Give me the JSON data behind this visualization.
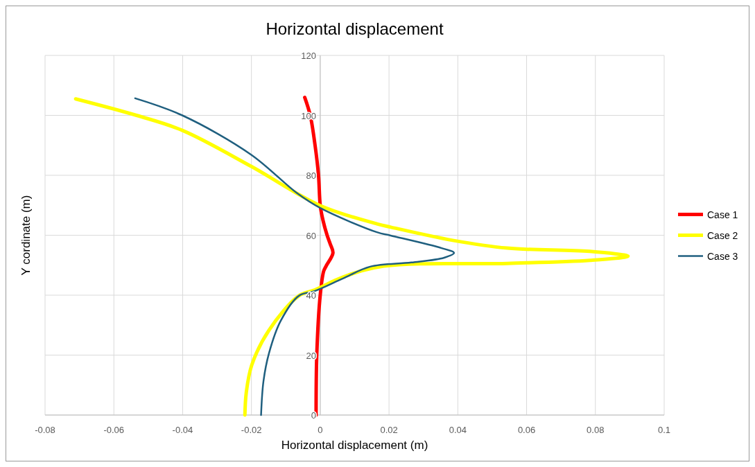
{
  "chart_data": {
    "type": "line",
    "title": "Horizontal displacement",
    "xlabel": "Horizontal displacement (m)",
    "ylabel": "Y cordinate (m)",
    "xlim": [
      -0.08,
      0.1
    ],
    "xticks": [
      -0.08,
      -0.06,
      -0.04,
      -0.02,
      0,
      0.02,
      0.04,
      0.06,
      0.08,
      0.1
    ],
    "ylim": [
      0,
      120
    ],
    "yticks": [
      0,
      20,
      40,
      60,
      80,
      100,
      120
    ],
    "grid": true,
    "legend": "right",
    "line_style": "solid",
    "series": [
      {
        "name": "Case 1",
        "color": "#ff0000",
        "x": [
          -0.0012,
          -0.001,
          0,
          0.001,
          0.0017,
          0.0037,
          0.0029,
          0.002,
          0.0008,
          0,
          -0.0005,
          -0.0015,
          -0.0029,
          -0.0045
        ],
        "values": [
          0,
          20,
          40,
          48,
          49.7,
          54.1,
          57.1,
          60,
          65,
          70,
          80,
          90,
          100,
          106
        ]
      },
      {
        "name": "Case 2",
        "color": "#ffff00",
        "x": [
          -0.0219,
          -0.0215,
          -0.0199,
          -0.0149,
          -0.0062,
          -0.0015,
          0.0065,
          0.0185,
          0.0544,
          0.0784,
          0.0895,
          0.0784,
          0.0544,
          0.0385,
          0.0205,
          0.0165,
          0,
          -0.0201,
          -0.0401,
          -0.0534,
          -0.0711
        ],
        "values": [
          0,
          7.5,
          16.7,
          28.3,
          39.8,
          41.8,
          46,
          49.7,
          50.6,
          51.6,
          53,
          54.6,
          55.7,
          58.3,
          62.7,
          63.8,
          69.9,
          83,
          95,
          100,
          105.5
        ]
      },
      {
        "name": "Case 3",
        "color": "#1f5f7f",
        "x": [
          -0.0172,
          -0.0165,
          -0.0149,
          -0.0115,
          -0.0062,
          -0.0015,
          0.0065,
          0.0145,
          0.0265,
          0.036,
          0.0389,
          0.0353,
          0.0205,
          0.0165,
          0,
          -0.0068,
          -0.0201,
          -0.0401,
          -0.0538
        ],
        "values": [
          0,
          11.3,
          20.6,
          31.4,
          39.8,
          41.4,
          45.5,
          49.5,
          50.9,
          52.5,
          54.1,
          55.7,
          59.9,
          61,
          69.1,
          74.1,
          86.9,
          100,
          105.7
        ]
      }
    ]
  }
}
